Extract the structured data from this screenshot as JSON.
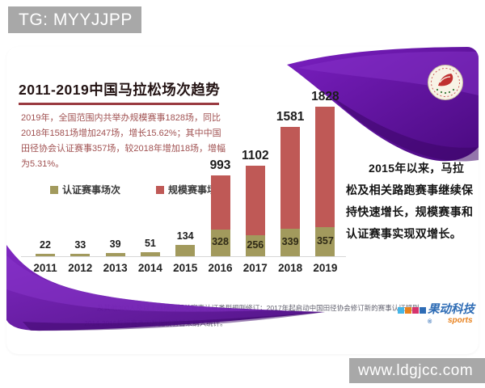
{
  "badges": {
    "tg": "TG: MYYJJPP",
    "website": "www.ldgjcc.com"
  },
  "card": {
    "title": "2011-2019中国马拉松场次趋势",
    "subtitle": "2019年，全国范围内共举办规模赛事1828场，同比2018年1581场增加247场，增长15.62%；其中中国田径协会认证赛事357场，较2018年增加18场，增幅为5.31%。",
    "side_note": "2015年以来，马拉松及相关路跑赛事继续保持快速增长，规模赛事和认证赛事实现双增长。",
    "footnotes": [
      "及其他300人及以上规模的相关赛事认证类型规则修订；2017年起启动中国田径协会修订新的赛事认证规则。",
      "2014-2015规模赛事因数据校验暂未纳入统计。"
    ],
    "brand": {
      "name": "果动科技",
      "reg": "®",
      "sub": "sports"
    },
    "emblem": "china-athletics-association-emblem"
  },
  "chart_data": {
    "type": "bar",
    "stacked": true,
    "title": "2011-2019中国马拉松场次趋势",
    "categories": [
      "2011",
      "2012",
      "2013",
      "2014",
      "2015",
      "2016",
      "2017",
      "2018",
      "2019"
    ],
    "series": [
      {
        "name": "认证赛事场次",
        "color": "#a29a5d",
        "values": [
          22,
          33,
          39,
          51,
          134,
          328,
          256,
          339,
          357
        ]
      },
      {
        "name": "规模赛事场次",
        "color": "#bf5956",
        "values": [
          null,
          null,
          null,
          null,
          null,
          993,
          1102,
          1581,
          1828
        ]
      }
    ],
    "total_labels": [
      "22",
      "33",
      "39",
      "51",
      "134",
      "993",
      "1102",
      "1581",
      "1828"
    ],
    "inner_labels": [
      null,
      null,
      null,
      null,
      null,
      "328",
      "256",
      "339",
      "357"
    ],
    "ylim": [
      0,
      1828
    ],
    "grid": false,
    "legend_position": "middle-left",
    "xlabel": "",
    "ylabel": ""
  },
  "colors": {
    "bar_certified": "#a29a5d",
    "bar_scale": "#bf5956",
    "purple_dark": "#4a0a80",
    "purple_main": "#6d15b5",
    "badge_gray": "#a8a8a8",
    "title_rule": "#9a3a40",
    "subtitle_text": "#a05151"
  }
}
